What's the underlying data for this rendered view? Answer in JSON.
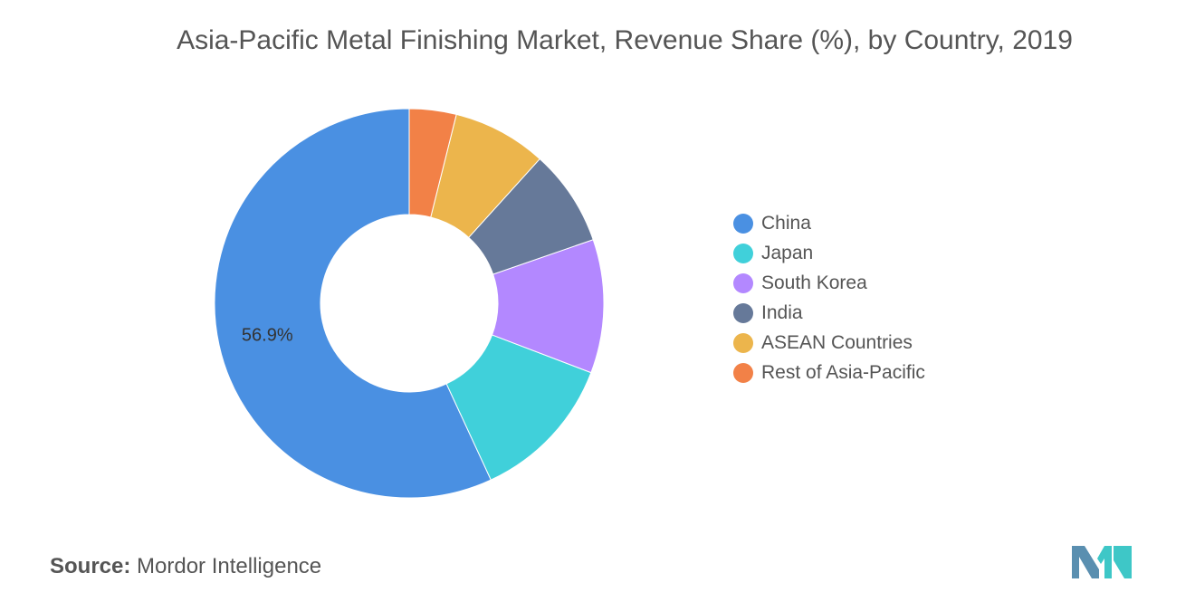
{
  "chart_data": {
    "type": "pie",
    "title": "Asia-Pacific Metal Finishing Market, Revenue Share (%), by Country, 2019",
    "donut": true,
    "legend_position": "right",
    "categories": [
      "China",
      "Japan",
      "South Korea",
      "India",
      "ASEAN Countries",
      "Rest of Asia-Pacific"
    ],
    "values": [
      56.9,
      12.3,
      11.1,
      8.0,
      7.8,
      3.9
    ],
    "data_labels": [
      "56.9%",
      "",
      "",
      "",
      "",
      ""
    ],
    "colors": [
      "#4a90e2",
      "#40d0da",
      "#b388ff",
      "#667999",
      "#ecb54c",
      "#f28147"
    ]
  },
  "source": {
    "prefix": "Source:",
    "name": "Mordor Intelligence"
  },
  "logo": {
    "icon": "mordor-intelligence-logo-icon",
    "colors": [
      "#5a8fb0",
      "#3ec7c7"
    ]
  }
}
